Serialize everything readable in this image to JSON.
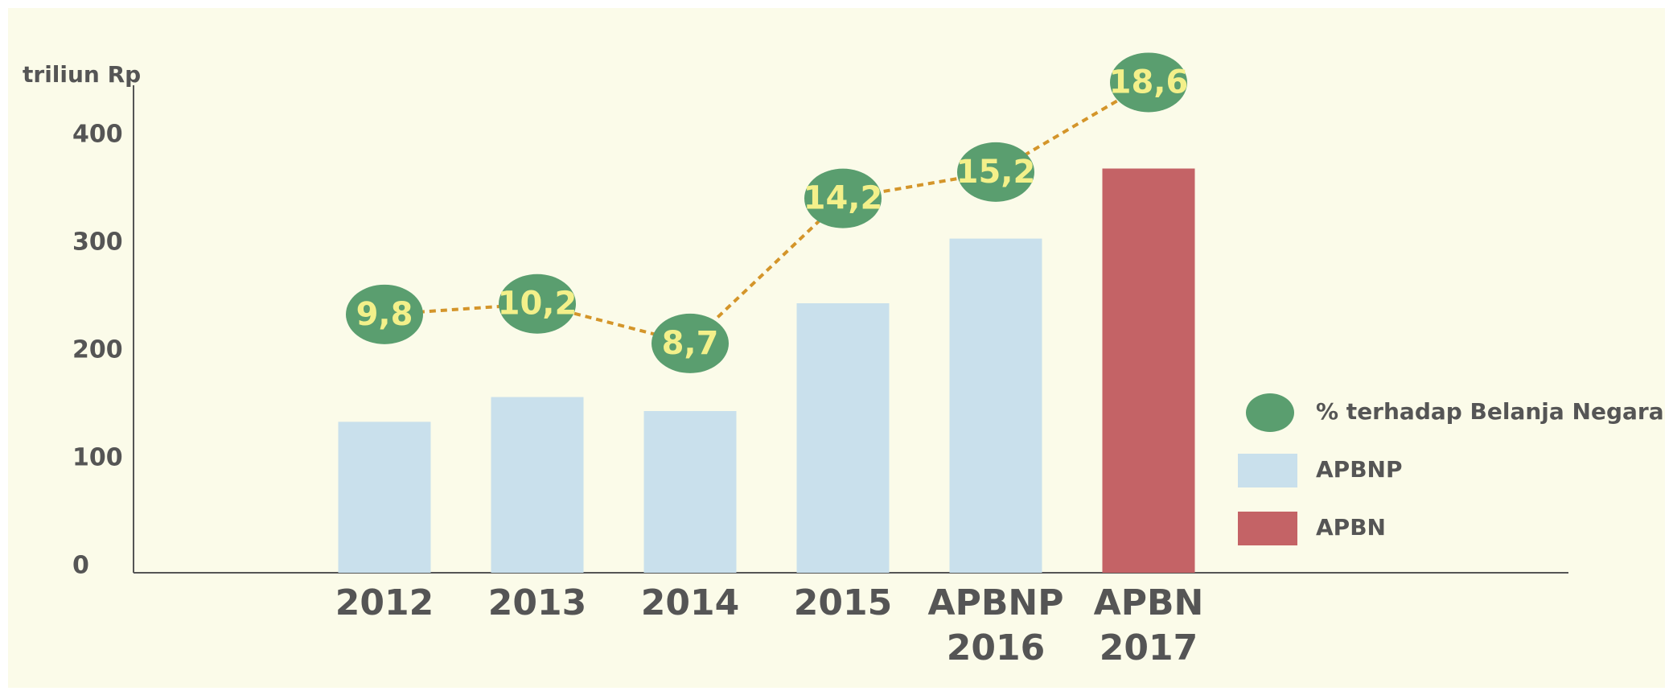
{
  "chart_data": {
    "type": "bar",
    "y_label": "triliun Rp",
    "categories": [
      "2012",
      "2013",
      "2014",
      "2015",
      "APBNP 2016",
      "APBN 2017"
    ],
    "series": [
      {
        "name": "APBNP",
        "color": "#c9e0ec",
        "values": [
          140,
          163,
          150,
          250,
          310,
          null
        ]
      },
      {
        "name": "APBN",
        "color": "#c46366",
        "values": [
          null,
          null,
          null,
          null,
          null,
          375
        ]
      },
      {
        "name": "% terhadap Belanja Negara",
        "type": "line",
        "axis": "y2",
        "color": "#5a9e6f",
        "line_color": "#d4952a",
        "values": [
          9.8,
          10.2,
          8.7,
          14.2,
          15.2,
          18.6
        ],
        "value_labels": [
          "9,8",
          "10,2",
          "8,7",
          "14,2",
          "15,2",
          "18,6"
        ]
      }
    ],
    "ylim": [
      0,
      450
    ],
    "yticks": [
      0,
      100,
      200,
      300,
      400
    ],
    "y2lim": [
      0,
      18.4
    ]
  }
}
